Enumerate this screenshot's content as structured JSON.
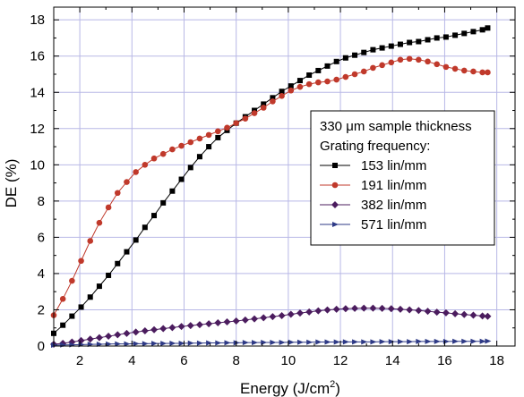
{
  "chart_data": {
    "type": "line",
    "xlabel": "Energy (J/cm",
    "xlabel_sup": "2",
    "xlabel_close": ")",
    "ylabel": "DE (%)",
    "xlim": [
      1,
      18.7
    ],
    "ylim": [
      0,
      18.7
    ],
    "xticks": [
      2,
      4,
      6,
      8,
      10,
      12,
      14,
      16,
      18
    ],
    "yticks": [
      0,
      2,
      4,
      6,
      8,
      10,
      12,
      14,
      16,
      18
    ],
    "grid": true,
    "legend": {
      "placement": "center-right",
      "title_line1_pre": "330 ",
      "title_line1_mu": "μ",
      "title_line1_post": "m sample thickness",
      "title_line2": "Grating frequency:"
    },
    "series": [
      {
        "name": "153 lin/mm",
        "color": "#000000",
        "marker": "square",
        "x": [
          1.0,
          1.35,
          1.7,
          2.05,
          2.4,
          2.75,
          3.1,
          3.45,
          3.8,
          4.15,
          4.5,
          4.85,
          5.2,
          5.55,
          5.9,
          6.25,
          6.6,
          6.95,
          7.3,
          7.65,
          8.0,
          8.35,
          8.7,
          9.05,
          9.4,
          9.75,
          10.1,
          10.45,
          10.8,
          11.15,
          11.5,
          11.85,
          12.2,
          12.55,
          12.9,
          13.25,
          13.6,
          13.95,
          14.3,
          14.65,
          15.0,
          15.35,
          15.7,
          16.05,
          16.4,
          16.75,
          17.1,
          17.45,
          17.65
        ],
        "values": [
          0.7,
          1.15,
          1.65,
          2.15,
          2.7,
          3.3,
          3.9,
          4.55,
          5.2,
          5.85,
          6.55,
          7.2,
          7.9,
          8.55,
          9.2,
          9.85,
          10.45,
          11.0,
          11.5,
          11.9,
          12.3,
          12.65,
          13.0,
          13.35,
          13.7,
          14.05,
          14.35,
          14.65,
          14.95,
          15.2,
          15.45,
          15.7,
          15.9,
          16.05,
          16.2,
          16.35,
          16.45,
          16.55,
          16.65,
          16.75,
          16.8,
          16.9,
          17.0,
          17.05,
          17.15,
          17.25,
          17.35,
          17.45,
          17.55
        ]
      },
      {
        "name": "191 lin/mm",
        "color": "#c0392b",
        "marker": "circle",
        "x": [
          1.0,
          1.35,
          1.7,
          2.05,
          2.4,
          2.75,
          3.1,
          3.45,
          3.8,
          4.15,
          4.5,
          4.85,
          5.2,
          5.55,
          5.9,
          6.25,
          6.6,
          6.95,
          7.3,
          7.65,
          8.0,
          8.35,
          8.7,
          9.05,
          9.4,
          9.75,
          10.1,
          10.45,
          10.8,
          11.15,
          11.5,
          11.85,
          12.2,
          12.55,
          12.9,
          13.25,
          13.6,
          13.95,
          14.3,
          14.65,
          15.0,
          15.35,
          15.7,
          16.05,
          16.4,
          16.75,
          17.1,
          17.45,
          17.65
        ],
        "values": [
          1.7,
          2.6,
          3.6,
          4.7,
          5.8,
          6.8,
          7.65,
          8.45,
          9.05,
          9.6,
          10.0,
          10.35,
          10.6,
          10.85,
          11.05,
          11.25,
          11.45,
          11.65,
          11.85,
          12.05,
          12.3,
          12.55,
          12.85,
          13.15,
          13.5,
          13.8,
          14.1,
          14.3,
          14.45,
          14.55,
          14.6,
          14.7,
          14.85,
          15.0,
          15.15,
          15.35,
          15.5,
          15.65,
          15.8,
          15.85,
          15.8,
          15.7,
          15.55,
          15.4,
          15.3,
          15.2,
          15.15,
          15.1,
          15.1
        ]
      },
      {
        "name": "382 lin/mm",
        "color": "#4b1c5e",
        "marker": "diamond",
        "x": [
          1.0,
          1.35,
          1.7,
          2.05,
          2.4,
          2.75,
          3.1,
          3.45,
          3.8,
          4.15,
          4.5,
          4.85,
          5.2,
          5.55,
          5.9,
          6.25,
          6.6,
          6.95,
          7.3,
          7.65,
          8.0,
          8.35,
          8.7,
          9.05,
          9.4,
          9.75,
          10.1,
          10.45,
          10.8,
          11.15,
          11.5,
          11.85,
          12.2,
          12.55,
          12.9,
          13.25,
          13.6,
          13.95,
          14.3,
          14.65,
          15.0,
          15.35,
          15.7,
          16.05,
          16.4,
          16.75,
          17.1,
          17.45,
          17.65
        ],
        "values": [
          0.1,
          0.15,
          0.22,
          0.3,
          0.38,
          0.46,
          0.54,
          0.62,
          0.7,
          0.77,
          0.84,
          0.9,
          0.96,
          1.02,
          1.08,
          1.13,
          1.18,
          1.23,
          1.28,
          1.33,
          1.38,
          1.44,
          1.5,
          1.56,
          1.62,
          1.68,
          1.75,
          1.82,
          1.88,
          1.94,
          1.99,
          2.03,
          2.06,
          2.08,
          2.09,
          2.09,
          2.08,
          2.06,
          2.03,
          2.0,
          1.96,
          1.92,
          1.87,
          1.83,
          1.78,
          1.74,
          1.7,
          1.66,
          1.64
        ]
      },
      {
        "name": "571 lin/mm",
        "color": "#2e3a86",
        "marker": "triangle-right",
        "x": [
          1.0,
          1.35,
          1.7,
          2.05,
          2.4,
          2.75,
          3.1,
          3.45,
          3.8,
          4.15,
          4.5,
          4.85,
          5.2,
          5.55,
          5.9,
          6.25,
          6.6,
          6.95,
          7.3,
          7.65,
          8.0,
          8.35,
          8.7,
          9.05,
          9.4,
          9.75,
          10.1,
          10.45,
          10.8,
          11.15,
          11.5,
          11.85,
          12.2,
          12.55,
          12.9,
          13.25,
          13.6,
          13.95,
          14.3,
          14.65,
          15.0,
          15.35,
          15.7,
          16.05,
          16.4,
          16.75,
          17.1,
          17.45,
          17.65
        ],
        "values": [
          0.05,
          0.06,
          0.07,
          0.08,
          0.09,
          0.1,
          0.11,
          0.12,
          0.12,
          0.13,
          0.13,
          0.14,
          0.14,
          0.15,
          0.15,
          0.16,
          0.16,
          0.17,
          0.17,
          0.18,
          0.18,
          0.19,
          0.19,
          0.2,
          0.2,
          0.2,
          0.21,
          0.21,
          0.21,
          0.22,
          0.22,
          0.22,
          0.23,
          0.23,
          0.23,
          0.23,
          0.24,
          0.24,
          0.24,
          0.24,
          0.25,
          0.25,
          0.25,
          0.25,
          0.26,
          0.26,
          0.26,
          0.26,
          0.27
        ]
      }
    ]
  }
}
